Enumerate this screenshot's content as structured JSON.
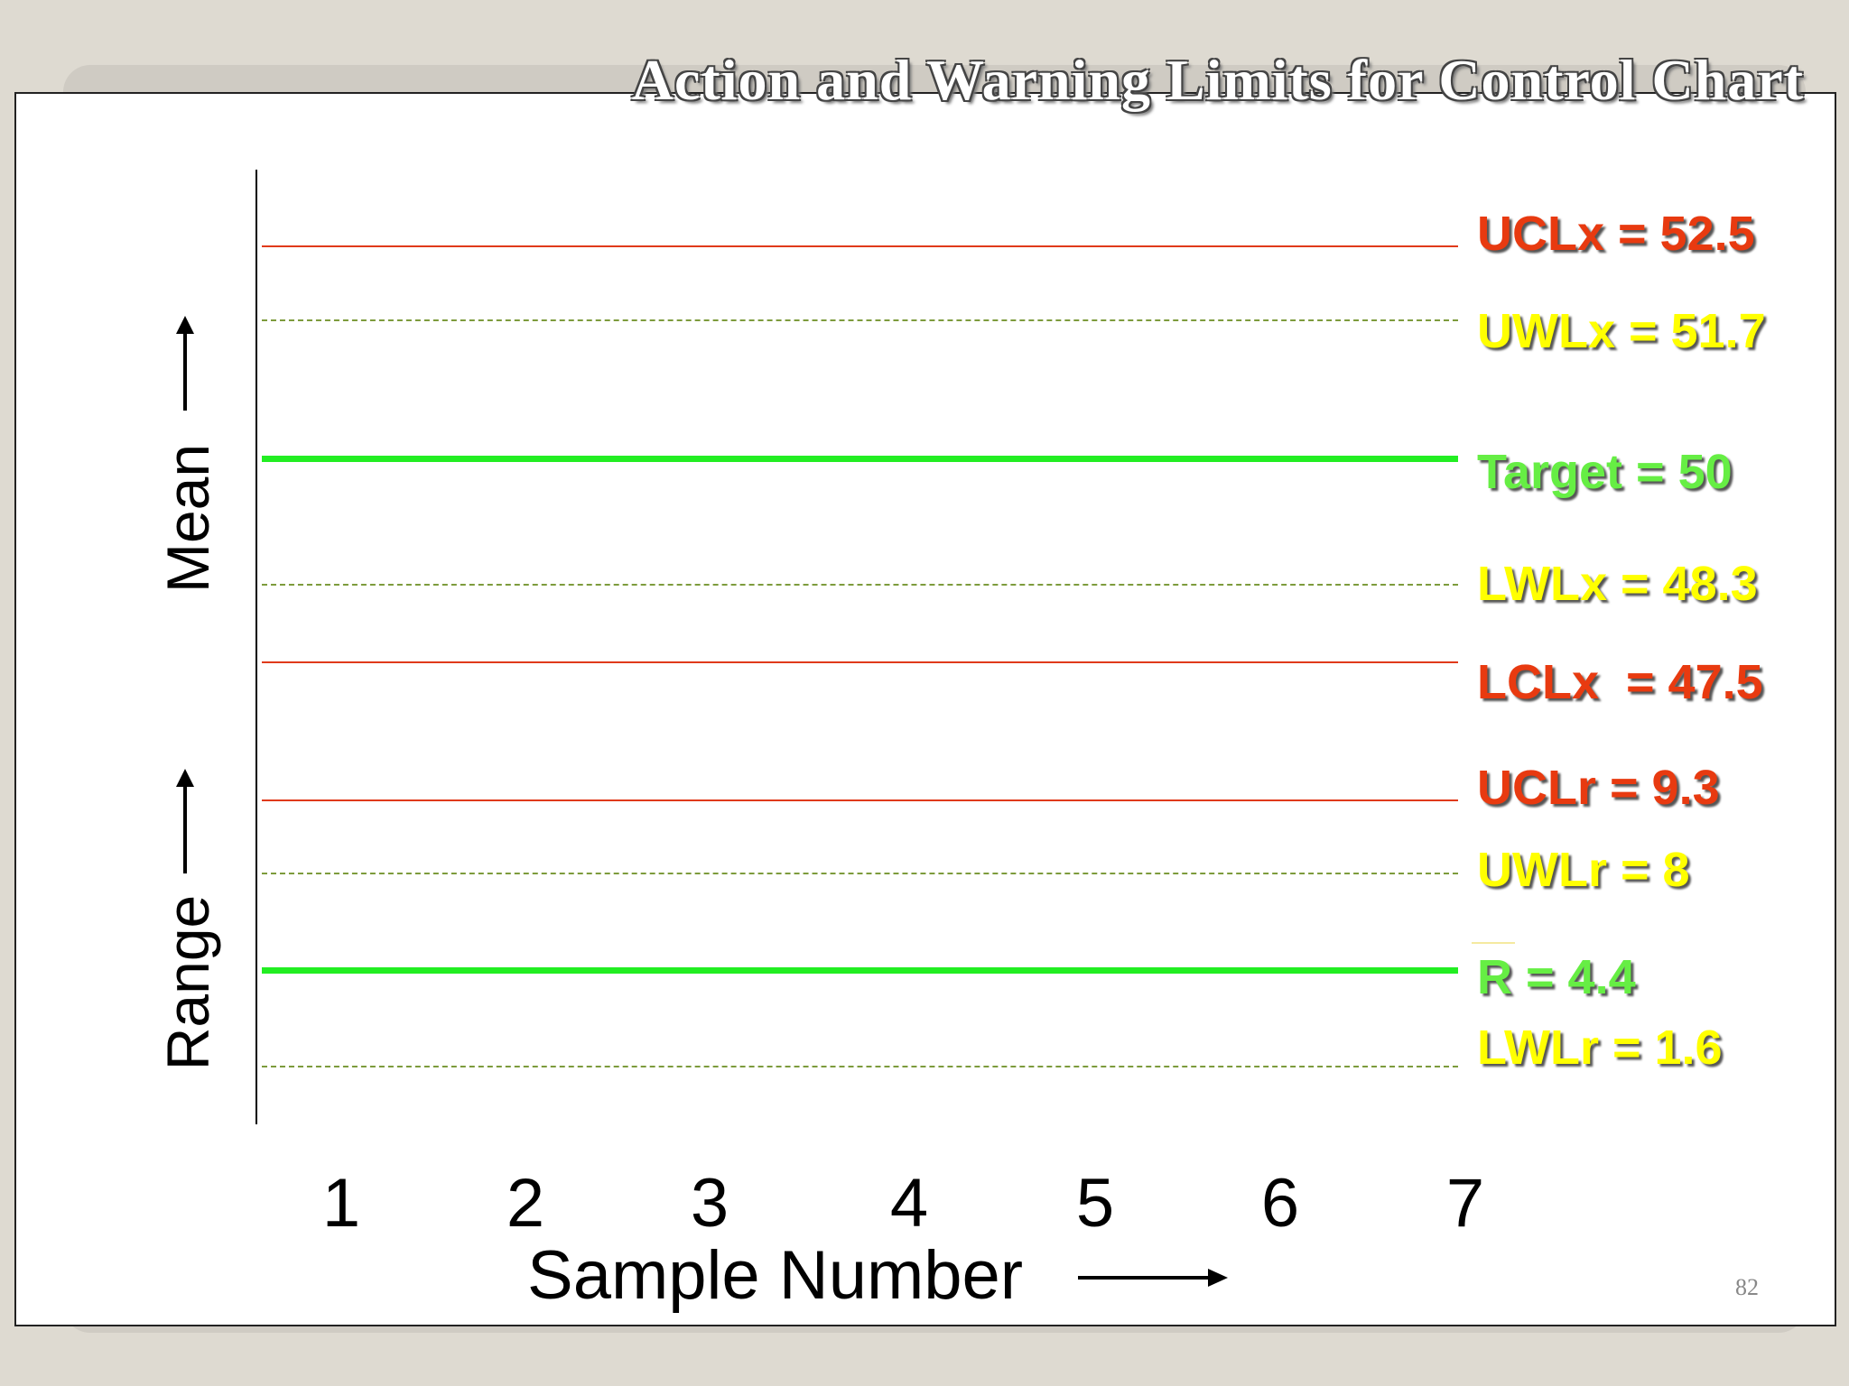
{
  "slide": {
    "title": "Action and Warning Limits for Control Chart",
    "page_number": "82"
  },
  "chart_data": {
    "type": "line",
    "title": "Action and Warning Limits for Control Chart",
    "xlabel": "Sample Number",
    "ylabel_mean": "Mean",
    "ylabel_range": "Range",
    "x_ticks": [
      "1",
      "2",
      "3",
      "4",
      "5",
      "6",
      "7"
    ],
    "x": [
      1,
      2,
      3,
      4,
      5,
      6,
      7
    ],
    "mean_chart": {
      "lines": [
        {
          "label": "UCLx = 52.5",
          "value": 52.5,
          "style": "solid",
          "color": "#e03a1a"
        },
        {
          "label": "UWLx = 51.7",
          "value": 51.7,
          "style": "dashed",
          "color": "#7d9b3c"
        },
        {
          "label": "Target = 50",
          "value": 50,
          "style": "thick",
          "color": "#22ee22"
        },
        {
          "label": "LWLx = 48.3",
          "value": 48.3,
          "style": "dashed",
          "color": "#7d9b3c"
        },
        {
          "label": "LCLx  = 47.5",
          "value": 47.5,
          "style": "solid",
          "color": "#e03a1a"
        }
      ]
    },
    "range_chart": {
      "lines": [
        {
          "label": "UCLr = 9.3",
          "value": 9.3,
          "style": "solid",
          "color": "#e03a1a"
        },
        {
          "label": "UWLr = 8",
          "value": 8,
          "style": "dashed",
          "color": "#7d9b3c"
        },
        {
          "label": "R = 4.4",
          "value": 4.4,
          "style": "thick",
          "color": "#22ee22"
        },
        {
          "label": "LWLr = 1.6",
          "value": 1.6,
          "style": "dashed",
          "color": "#7d9b3c"
        }
      ]
    }
  }
}
